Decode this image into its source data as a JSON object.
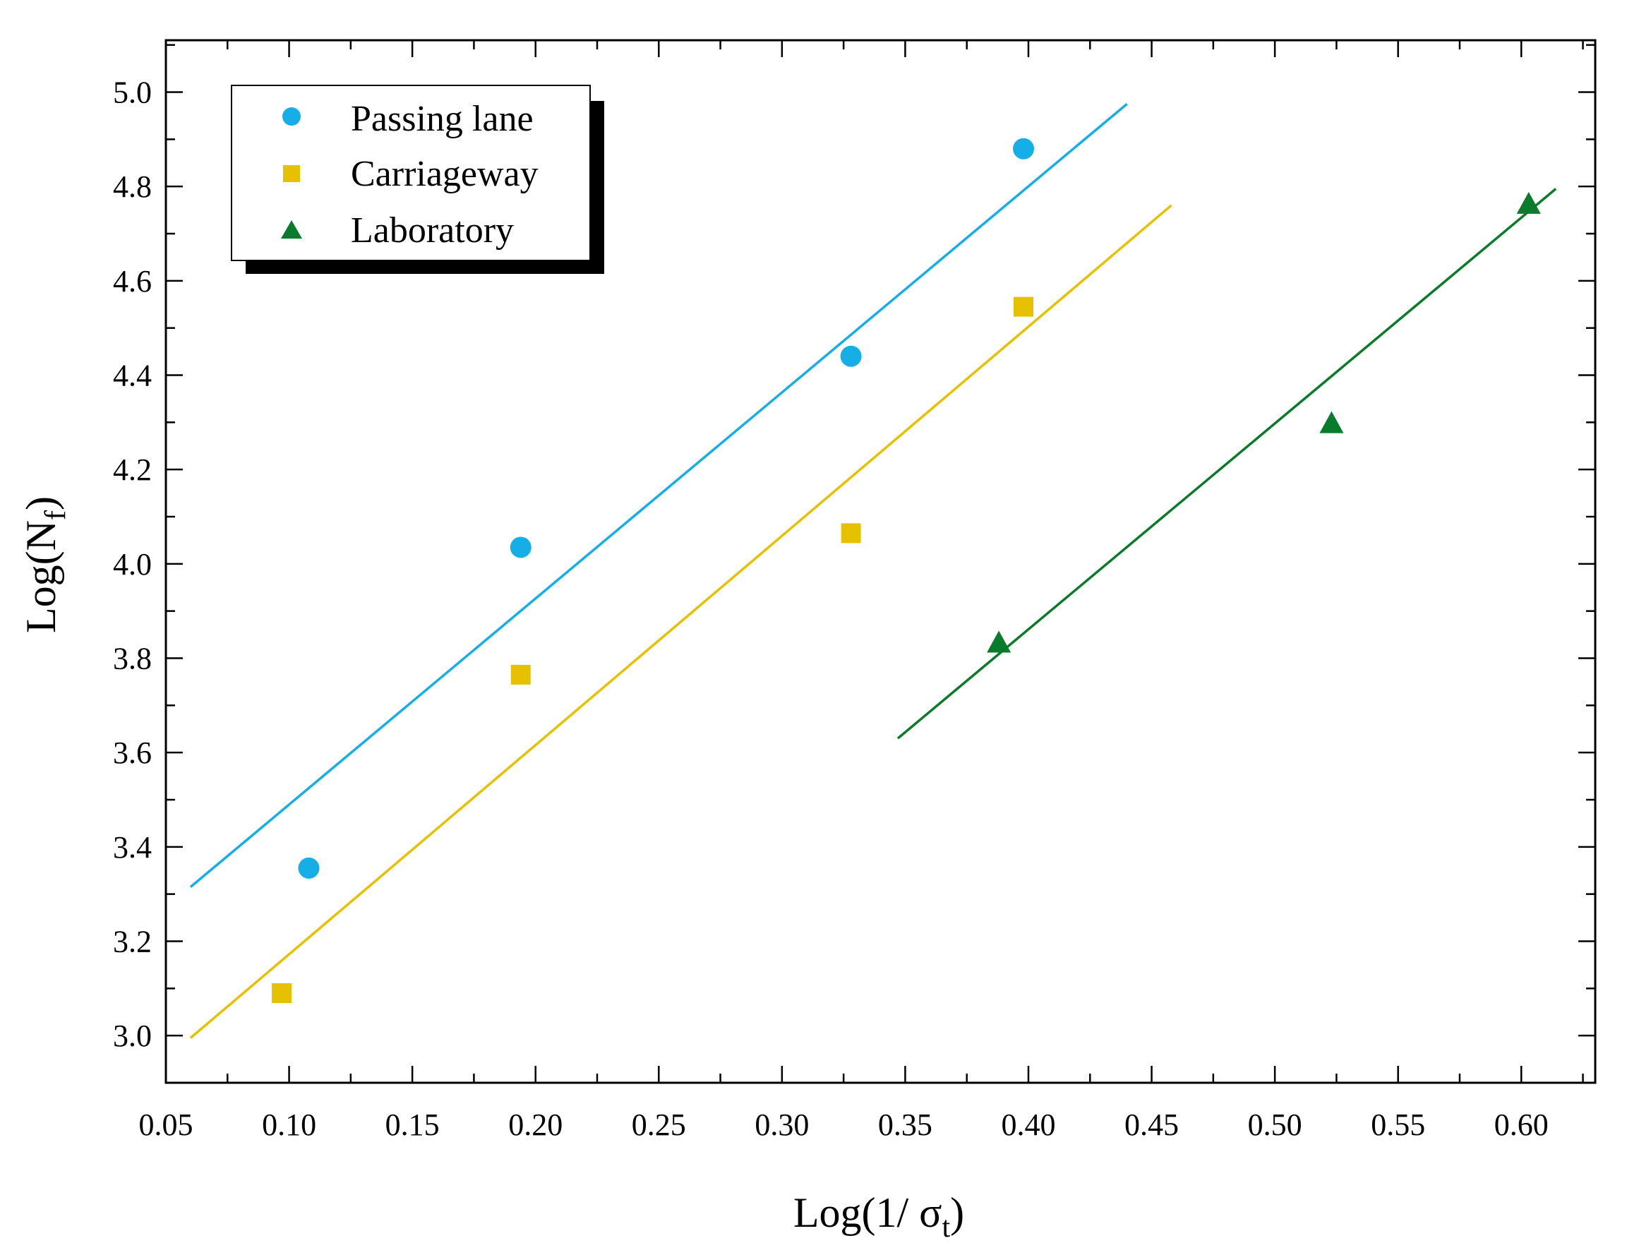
{
  "chart_data": {
    "type": "scatter",
    "xlabel": "Log(1/ σ t)",
    "xlabel_parts": {
      "main": "Log(1/ σ",
      "sub": "t",
      "close": ")"
    },
    "ylabel": "Log(Nf)",
    "ylabel_parts": {
      "main": "Log(N",
      "sub": "f",
      "close": ")"
    },
    "xlim": [
      0.05,
      0.63
    ],
    "ylim": [
      2.9,
      5.11
    ],
    "xticks": [
      0.05,
      0.1,
      0.15,
      0.2,
      0.25,
      0.3,
      0.35,
      0.4,
      0.45,
      0.5,
      0.55,
      0.6
    ],
    "xtick_labels": [
      "0.05",
      "0.10",
      "0.15",
      "0.20",
      "0.25",
      "0.30",
      "0.35",
      "0.40",
      "0.45",
      "0.50",
      "0.55",
      "0.60"
    ],
    "yticks": [
      3.0,
      3.2,
      3.4,
      3.6,
      3.8,
      4.0,
      4.2,
      4.4,
      4.6,
      4.8,
      5.0
    ],
    "ytick_labels": [
      "3.0",
      "3.2",
      "3.4",
      "3.6",
      "3.8",
      "4.0",
      "4.2",
      "4.4",
      "4.6",
      "4.8",
      "5.0"
    ],
    "grid": false,
    "legend_position": "top-left",
    "series": [
      {
        "name": "Passing lane",
        "marker": "circle",
        "color": "#16AEE6",
        "x": [
          0.108,
          0.194,
          0.328,
          0.398
        ],
        "y": [
          3.355,
          4.035,
          4.44,
          4.88
        ],
        "fit": {
          "x": [
            0.06,
            0.44
          ],
          "y": [
            3.315,
            4.975
          ]
        }
      },
      {
        "name": "Carriageway",
        "marker": "square",
        "color": "#E5C100",
        "x": [
          0.097,
          0.194,
          0.328,
          0.398
        ],
        "y": [
          3.09,
          3.765,
          4.065,
          4.545
        ],
        "fit": {
          "x": [
            0.06,
            0.458
          ],
          "y": [
            2.995,
            4.76
          ]
        }
      },
      {
        "name": "Laboratory",
        "marker": "triangle",
        "color": "#0A7A2B",
        "x": [
          0.388,
          0.523,
          0.603
        ],
        "y": [
          3.83,
          4.295,
          4.76
        ],
        "fit": {
          "x": [
            0.347,
            0.614
          ],
          "y": [
            3.63,
            4.795
          ]
        }
      }
    ]
  }
}
